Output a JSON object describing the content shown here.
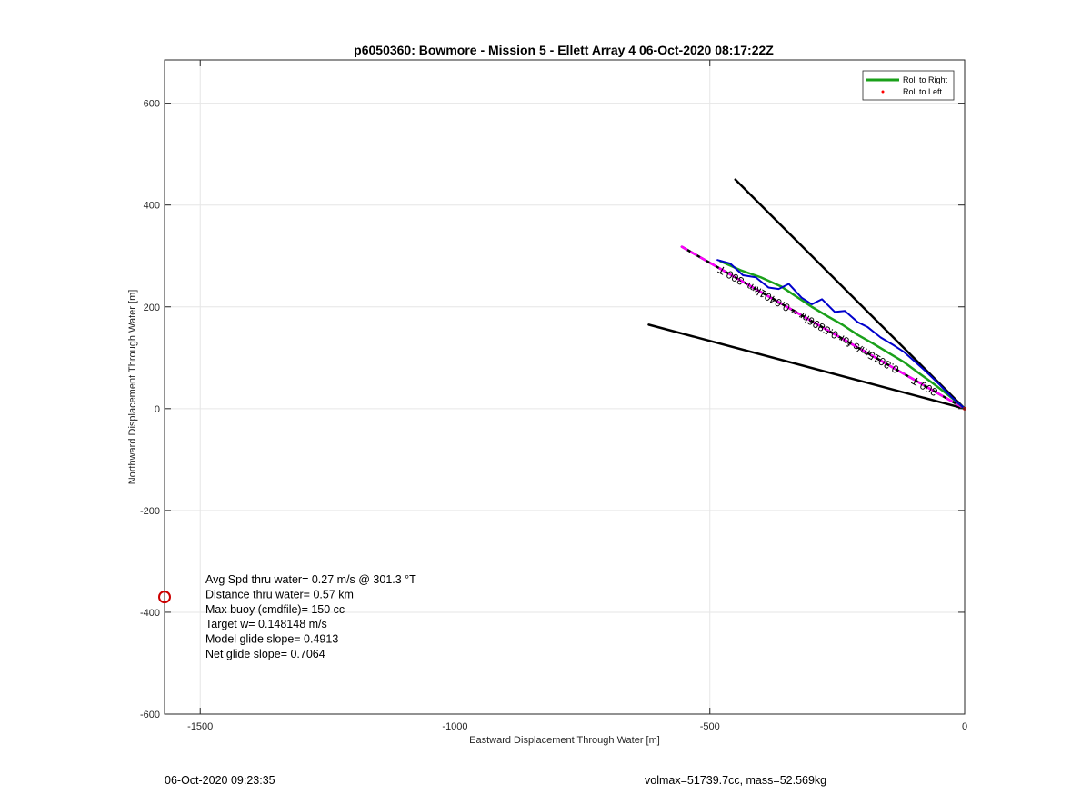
{
  "chart_data": {
    "type": "line",
    "title": "p6050360: Bowmore - Mission 5 - Ellett Array 4 06-Oct-2020 08:17:22Z",
    "xlabel": "Eastward Displacement Through Water [m]",
    "ylabel": "Northward Displacement Through Water [m]",
    "xlim": [
      -1570,
      0
    ],
    "ylim": [
      -600,
      685
    ],
    "xticks": [
      -1500,
      -1000,
      -500,
      0
    ],
    "yticks": [
      -600,
      -400,
      -200,
      0,
      200,
      400,
      600
    ],
    "grid": true,
    "legend": {
      "placement": "top-right",
      "entries": [
        {
          "name": "Roll to Right",
          "color": "#1aa01a"
        },
        {
          "name": "Roll to Left",
          "color": "#ff0000"
        }
      ]
    },
    "series": [
      {
        "color": "#000000",
        "x": [
          -450,
          0
        ],
        "y": [
          450,
          0
        ]
      },
      {
        "color": "#000000",
        "x": [
          -620,
          0
        ],
        "y": [
          165,
          0
        ]
      },
      {
        "color": "#000000",
        "x": [
          -555,
          0
        ],
        "y": [
          318,
          0
        ]
      },
      {
        "color": "#ff00ff",
        "x": [
          -555,
          0
        ],
        "y": [
          318,
          0
        ]
      },
      {
        "name": "Roll to Right",
        "color": "#1aa01a",
        "x": [
          -480,
          -440,
          -400,
          -360,
          -330,
          -300,
          -270,
          -240,
          -210,
          -180,
          -150,
          -120,
          -90,
          -60,
          -30,
          0
        ],
        "y": [
          290,
          272,
          258,
          240,
          220,
          200,
          182,
          165,
          145,
          128,
          110,
          92,
          70,
          48,
          25,
          0
        ]
      },
      {
        "color": "#0000cc",
        "x": [
          -485,
          -460,
          -435,
          -410,
          -385,
          -365,
          -345,
          -320,
          -300,
          -280,
          -255,
          -235,
          -210,
          -190,
          -165,
          -140,
          -120,
          -95,
          -75,
          -50,
          -25,
          0
        ],
        "y": [
          292,
          285,
          262,
          258,
          238,
          235,
          245,
          218,
          205,
          215,
          190,
          192,
          170,
          160,
          140,
          125,
          112,
          90,
          72,
          48,
          22,
          0
        ]
      },
      {
        "name": "Roll to Left",
        "color": "#ff0000",
        "x": [
          0
        ],
        "y": [
          0
        ]
      }
    ],
    "line_labels": [
      {
        "text": "0.3015m/s for 0.5896hr = 0.6401km",
        "x": -275,
        "y": 165,
        "angle": 29.6
      },
      {
        "text": "300 T",
        "x": -455,
        "y": 268,
        "angle": 29.6
      },
      {
        "text": "300 T",
        "x": -75,
        "y": 50,
        "angle": 29.6
      }
    ],
    "markers": [
      {
        "shape": "circle",
        "color": "#cc0000",
        "x": -1570,
        "y": -370
      }
    ]
  },
  "annotations": [
    "Avg Spd thru water=  0.27 m/s @ 301.3 °T",
    "Distance thru water=  0.57 km",
    "Max buoy (cmdfile)= 150 cc",
    "Target w= 0.148148 m/s",
    "Model glide slope= 0.4913",
    "Net glide slope= 0.7064"
  ],
  "footer": {
    "timestamp": "06-Oct-2020 09:23:35",
    "stats": "volmax=51739.7cc, mass=52.569kg"
  }
}
